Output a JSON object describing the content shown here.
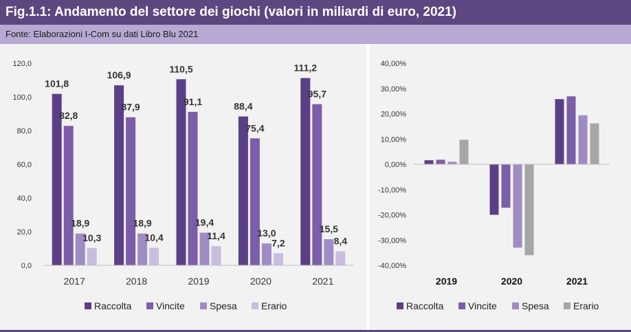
{
  "title": "Fig.1.1: Andamento del settore dei giochi (valori in miliardi di euro, 2021)",
  "source": "Fonte: Elaborazioni I-Com su dati Libro Blu 2021",
  "colors": {
    "header": "#5e4680",
    "source_band": "#b7a9d3",
    "Raccolta": "#5b3f86",
    "Vincite": "#7b5ea7",
    "Spesa": "#a08cc4",
    "Erario": "#c9bddf",
    "Erario_right": "#a6a6a6"
  },
  "chart_data": [
    {
      "type": "bar",
      "categories": [
        "2017",
        "2018",
        "2019",
        "2020",
        "2021"
      ],
      "series": [
        {
          "name": "Raccolta",
          "values": [
            101.8,
            106.9,
            110.5,
            88.4,
            111.2
          ],
          "labels": [
            "101,8",
            "106,9",
            "110,5",
            "88,4",
            "111,2"
          ]
        },
        {
          "name": "Vincite",
          "values": [
            82.8,
            87.9,
            91.1,
            75.4,
            95.7
          ],
          "labels": [
            "82,8",
            "87,9",
            "91,1",
            "75,4",
            "95,7"
          ]
        },
        {
          "name": "Spesa",
          "values": [
            18.9,
            18.9,
            19.4,
            13.0,
            15.5
          ],
          "labels": [
            "18,9",
            "18,9",
            "19,4",
            "13,0",
            "15,5"
          ]
        },
        {
          "name": "Erario",
          "values": [
            10.3,
            10.4,
            11.4,
            7.2,
            8.4
          ],
          "labels": [
            "10,3",
            "10,4",
            "11,4",
            "7,2",
            "8,4"
          ]
        }
      ],
      "ylim": [
        0,
        120
      ],
      "yticks": [
        "0,0",
        "20,0",
        "40,0",
        "60,0",
        "80,0",
        "100,0",
        "120,0"
      ],
      "grid": false,
      "legend": "bottom"
    },
    {
      "type": "bar",
      "categories": [
        "2019",
        "2020",
        "2021"
      ],
      "series": [
        {
          "name": "Raccolta",
          "values": [
            1.6,
            -20.0,
            25.8
          ]
        },
        {
          "name": "Vincite",
          "values": [
            1.8,
            -17.2,
            26.9
          ]
        },
        {
          "name": "Spesa",
          "values": [
            1.0,
            -33.0,
            19.4
          ]
        },
        {
          "name": "Erario",
          "values": [
            9.7,
            -36.0,
            16.2
          ]
        }
      ],
      "ylim": [
        -40,
        40
      ],
      "yticks": [
        "-40,00%",
        "-30,00%",
        "-20,00%",
        "-10,00%",
        "0,00%",
        "10,00%",
        "20,00%",
        "30,00%",
        "40,00%"
      ],
      "grid": false,
      "legend": "bottom"
    }
  ]
}
